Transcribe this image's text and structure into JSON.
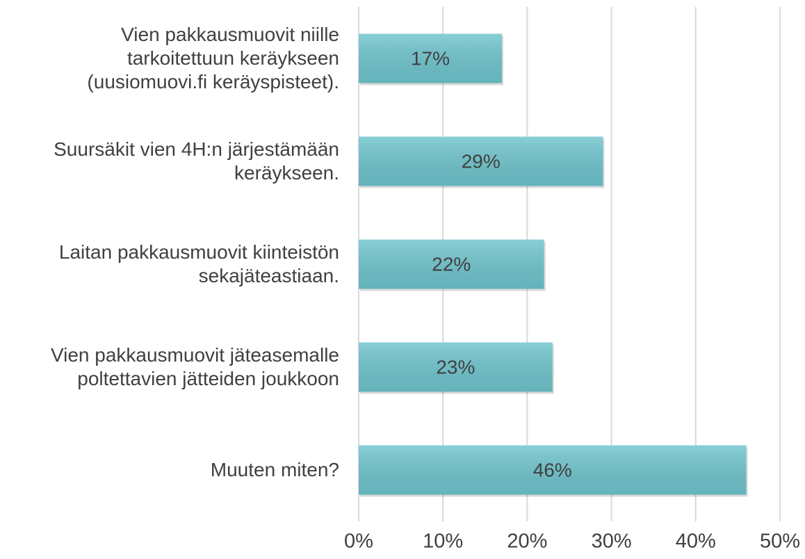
{
  "chart_data": {
    "type": "barh",
    "categories": [
      "Vien pakkausmuovit niille\ntarkoitettuun keräykseen\n(uusiomuovi.fi keräyspisteet).",
      "Suursäkit vien 4H:n järjestämään\nkeräykseen.",
      "Laitan pakkausmuovit kiinteistön\nsekajäteastiaan.",
      "Vien pakkausmuovit jäteasemalle\npoltettavien jätteiden joukkoon",
      "Muuten miten?"
    ],
    "values": [
      17,
      29,
      22,
      23,
      46
    ],
    "value_labels": [
      "17%",
      "29%",
      "22%",
      "23%",
      "46%"
    ],
    "color": "#6fc4cd",
    "xlim": [
      0,
      50
    ],
    "xticks": [
      {
        "value": 0,
        "label": "0%"
      },
      {
        "value": 10,
        "label": "10%"
      },
      {
        "value": 20,
        "label": "20%"
      },
      {
        "value": 30,
        "label": "30%"
      },
      {
        "value": 40,
        "label": "40%"
      },
      {
        "value": 50,
        "label": "50%"
      }
    ],
    "grid": true
  }
}
